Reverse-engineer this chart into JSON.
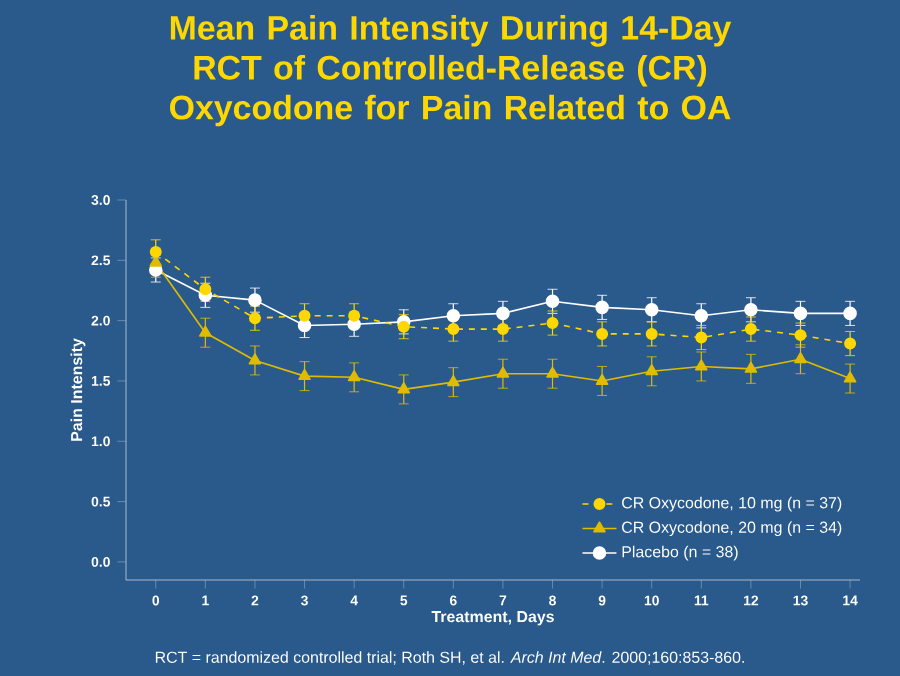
{
  "chart_data": {
    "type": "line",
    "title": "Mean Pain Intensity During 14-Day RCT of Controlled-Release (CR) Oxycodone for Pain Related to OA",
    "xlabel": "Treatment, Days",
    "ylabel": "Pain Intensity",
    "categories": [
      "0",
      "1",
      "2",
      "3",
      "4",
      "5",
      "6",
      "7",
      "8",
      "9",
      "10",
      "11",
      "12",
      "13",
      "14"
    ],
    "series": [
      {
        "name": "CR Oxycodone, 10 mg (n = 37)",
        "color": "#ffd700",
        "marker": "circle",
        "line_style": "dashed",
        "values": [
          2.57,
          2.26,
          2.02,
          2.04,
          2.04,
          1.95,
          1.93,
          1.93,
          1.98,
          1.89,
          1.89,
          1.86,
          1.93,
          1.88,
          1.81
        ],
        "errors": [
          0.1,
          0.1,
          0.1,
          0.1,
          0.1,
          0.1,
          0.1,
          0.1,
          0.1,
          0.1,
          0.1,
          0.1,
          0.1,
          0.1,
          0.1
        ]
      },
      {
        "name": "CR Oxycodone, 20 mg (n = 34)",
        "color": "#e0bc00",
        "marker": "triangle",
        "line_style": "solid",
        "values": [
          2.48,
          1.9,
          1.67,
          1.54,
          1.53,
          1.43,
          1.49,
          1.56,
          1.56,
          1.5,
          1.58,
          1.62,
          1.6,
          1.68,
          1.52
        ],
        "errors": [
          0.12,
          0.12,
          0.12,
          0.12,
          0.12,
          0.12,
          0.12,
          0.12,
          0.12,
          0.12,
          0.12,
          0.12,
          0.12,
          0.12,
          0.12
        ]
      },
      {
        "name": "Placebo (n = 38)",
        "color": "#ffffff",
        "marker": "circle",
        "line_style": "solid",
        "values": [
          2.42,
          2.21,
          2.17,
          1.96,
          1.97,
          1.99,
          2.04,
          2.06,
          2.16,
          2.11,
          2.09,
          2.04,
          2.09,
          2.06,
          2.06
        ],
        "errors": [
          0.1,
          0.1,
          0.1,
          0.1,
          0.1,
          0.1,
          0.1,
          0.1,
          0.1,
          0.1,
          0.1,
          0.1,
          0.1,
          0.1,
          0.1
        ]
      }
    ],
    "ylim": [
      -0.15,
      3.0
    ],
    "yticks": [
      {
        "value": 0,
        "label": "0.0"
      },
      0.5,
      {
        "value": 1,
        "label": "1.0"
      },
      1.5,
      {
        "value": 2,
        "label": "2.0"
      },
      2.5,
      {
        "value": 3,
        "label": "3.0"
      }
    ],
    "grid": false,
    "legend": "bottom right",
    "annotations": [
      "RCT = randomized controlled trial; Roth SH, et al. *Arch Int Med*. 2000;160:853-860."
    ]
  }
}
